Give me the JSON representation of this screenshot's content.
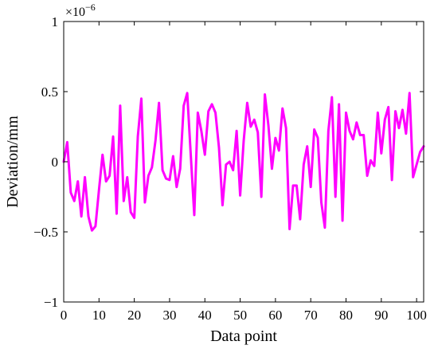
{
  "chart_data": {
    "type": "line",
    "title": "",
    "xlabel": "Data point",
    "ylabel": "Deviation/mm",
    "y_exponent_label": "×10",
    "y_exponent": "−6",
    "xlim": [
      0,
      102
    ],
    "ylim": [
      -1,
      1
    ],
    "xticks": [
      0,
      10,
      20,
      30,
      40,
      50,
      60,
      70,
      80,
      90,
      100
    ],
    "yticks": [
      -1,
      -0.5,
      0,
      0.5,
      1
    ],
    "xtick_labels": [
      "0",
      "10",
      "20",
      "30",
      "40",
      "50",
      "60",
      "70",
      "80",
      "90",
      "100"
    ],
    "ytick_labels": [
      "−1",
      "−0.5",
      "0",
      "0.5",
      "1"
    ],
    "grid": false,
    "series": [
      {
        "name": "",
        "color": "#ff00ff",
        "x": [
          0,
          1,
          2,
          3,
          4,
          5,
          6,
          7,
          8,
          9,
          10,
          11,
          12,
          13,
          14,
          15,
          16,
          17,
          18,
          19,
          20,
          21,
          22,
          23,
          24,
          25,
          26,
          27,
          28,
          29,
          30,
          31,
          32,
          33,
          34,
          35,
          36,
          37,
          38,
          39,
          40,
          41,
          42,
          43,
          44,
          45,
          46,
          47,
          48,
          49,
          50,
          51,
          52,
          53,
          54,
          55,
          56,
          57,
          58,
          59,
          60,
          61,
          62,
          63,
          64,
          65,
          66,
          67,
          68,
          69,
          70,
          71,
          72,
          73,
          74,
          75,
          76,
          77,
          78,
          79,
          80,
          81,
          82,
          83,
          84,
          85,
          86,
          87,
          88,
          89,
          90,
          91,
          92,
          93,
          94,
          95,
          96,
          97,
          98,
          99,
          100,
          101,
          102
        ],
        "values": [
          0,
          0.14,
          -0.22,
          -0.28,
          -0.14,
          -0.39,
          -0.11,
          -0.39,
          -0.49,
          -0.46,
          -0.2,
          0.05,
          -0.14,
          -0.1,
          0.18,
          -0.37,
          0.4,
          -0.28,
          -0.11,
          -0.36,
          -0.4,
          0.18,
          0.45,
          -0.29,
          -0.1,
          -0.04,
          0.15,
          0.42,
          -0.06,
          -0.12,
          -0.13,
          0.04,
          -0.18,
          -0.05,
          0.4,
          0.49,
          0.05,
          -0.38,
          0.35,
          0.22,
          0.05,
          0.36,
          0.41,
          0.35,
          0.1,
          -0.31,
          -0.02,
          0,
          -0.06,
          0.22,
          -0.24,
          0.15,
          0.42,
          0.25,
          0.3,
          0.21,
          -0.25,
          0.48,
          0.26,
          -0.05,
          0.17,
          0.08,
          0.38,
          0.24,
          -0.48,
          -0.17,
          -0.17,
          -0.41,
          -0.02,
          0.11,
          -0.18,
          0.23,
          0.17,
          -0.29,
          -0.47,
          0.22,
          0.46,
          -0.25,
          0.41,
          -0.42,
          0.35,
          0.22,
          0.16,
          0.28,
          0.19,
          0.19,
          -0.1,
          0.01,
          -0.03,
          0.35,
          0.06,
          0.3,
          0.39,
          -0.13,
          0.36,
          0.24,
          0.37,
          0.2,
          0.49,
          -0.11,
          -0.02,
          0.07,
          0.11
        ]
      }
    ]
  }
}
